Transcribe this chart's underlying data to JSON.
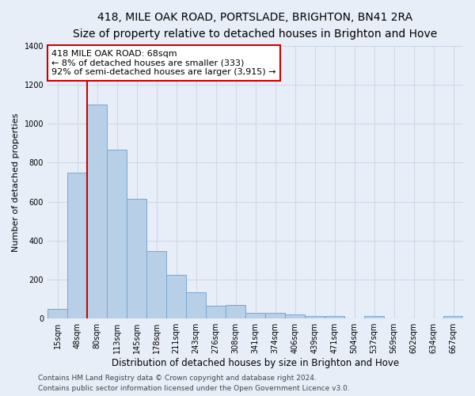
{
  "title_line1": "418, MILE OAK ROAD, PORTSLADE, BRIGHTON, BN41 2RA",
  "title_line2": "Size of property relative to detached houses in Brighton and Hove",
  "xlabel": "Distribution of detached houses by size in Brighton and Hove",
  "ylabel": "Number of detached properties",
  "footer_line1": "Contains HM Land Registry data © Crown copyright and database right 2024.",
  "footer_line2": "Contains public sector information licensed under the Open Government Licence v3.0.",
  "bar_labels": [
    "15sqm",
    "48sqm",
    "80sqm",
    "113sqm",
    "145sqm",
    "178sqm",
    "211sqm",
    "243sqm",
    "276sqm",
    "308sqm",
    "341sqm",
    "374sqm",
    "406sqm",
    "439sqm",
    "471sqm",
    "504sqm",
    "537sqm",
    "569sqm",
    "602sqm",
    "634sqm",
    "667sqm"
  ],
  "bar_values": [
    50,
    750,
    1100,
    865,
    615,
    345,
    225,
    135,
    65,
    70,
    30,
    30,
    22,
    15,
    15,
    0,
    12,
    0,
    0,
    0,
    12
  ],
  "bar_color": "#b8cfe8",
  "bar_edge_color": "#7aa8d0",
  "background_color": "#e8eef8",
  "grid_color": "#d0d8e8",
  "annotation_box_text": "418 MILE OAK ROAD: 68sqm\n← 8% of detached houses are smaller (333)\n92% of semi-detached houses are larger (3,915) →",
  "annotation_box_color": "#ffffff",
  "annotation_box_edge_color": "#cc0000",
  "vline_x": 1.5,
  "vline_color": "#cc0000",
  "ylim": [
    0,
    1400
  ],
  "yticks": [
    0,
    200,
    400,
    600,
    800,
    1000,
    1200,
    1400
  ],
  "title1_fontsize": 10,
  "title2_fontsize": 9,
  "xlabel_fontsize": 8.5,
  "ylabel_fontsize": 8,
  "tick_fontsize": 7,
  "annotation_fontsize": 8,
  "footer_fontsize": 6.5
}
